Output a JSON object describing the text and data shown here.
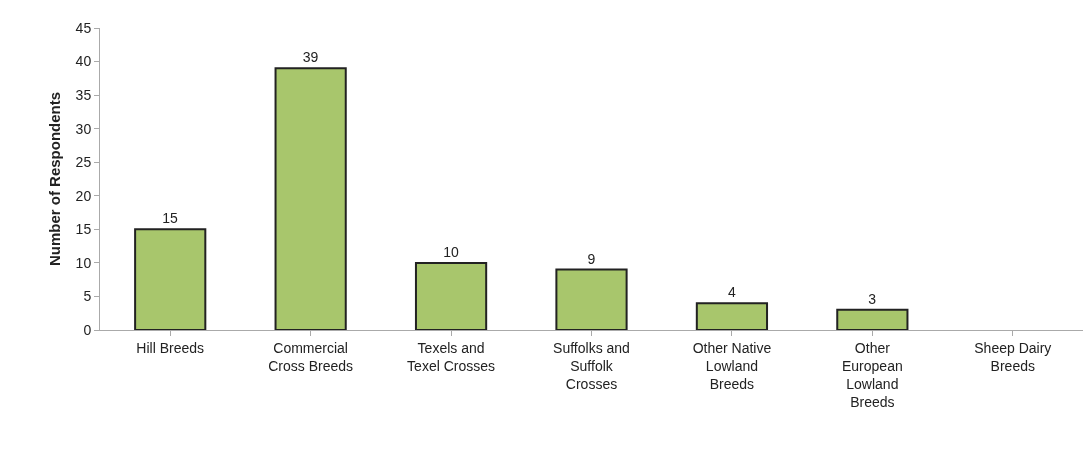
{
  "chart_data": {
    "type": "bar",
    "ylabel": "Number of Respondents",
    "categories": [
      "Hill Breeds",
      "Commercial Cross Breeds",
      "Texels and Texel Crosses",
      "Suffolks and Suffolk Crosses",
      "Other Native Lowland Breeds",
      "Other European Lowland Breeds",
      "Sheep Dairy Breeds"
    ],
    "values": [
      15,
      39,
      10,
      9,
      4,
      3,
      0
    ],
    "value_labels": [
      "15",
      "39",
      "10",
      "9",
      "4",
      "3",
      null
    ],
    "color": "#a8c66c",
    "ylim": [
      0,
      45
    ],
    "yticks": [
      0,
      5,
      10,
      15,
      20,
      25,
      30,
      35,
      40,
      45
    ],
    "grid": false
  }
}
